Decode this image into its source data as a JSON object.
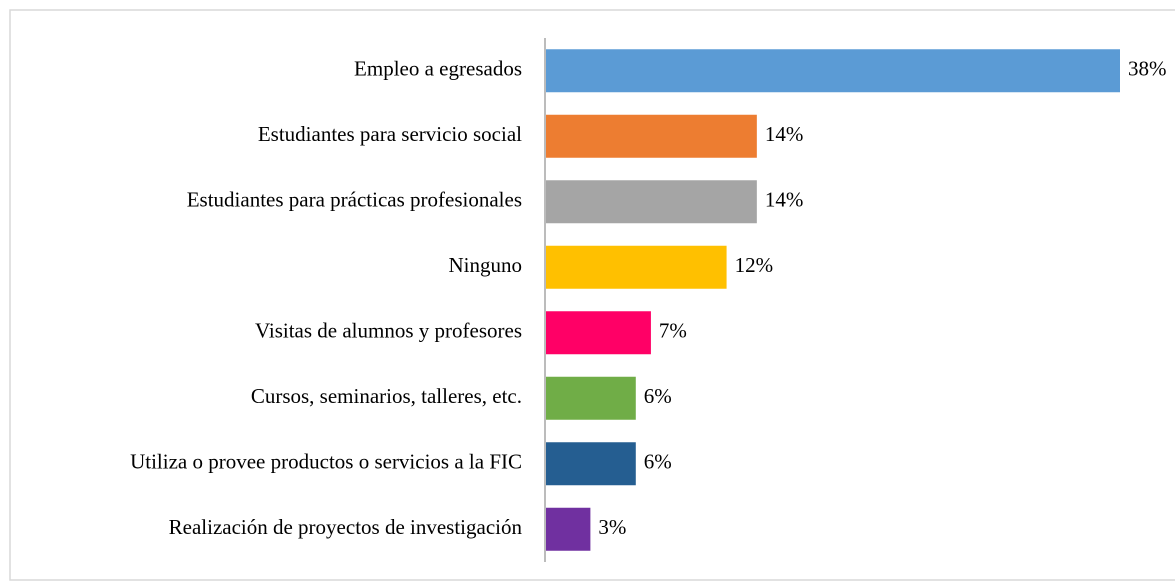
{
  "chart_data": {
    "type": "bar",
    "orientation": "horizontal",
    "categories": [
      "Empleo a egresados",
      "Estudiantes para servicio social",
      "Estudiantes para prácticas profesionales",
      "Ninguno",
      "Visitas de alumnos y profesores",
      "Cursos, seminarios, talleres, etc.",
      "Utiliza o provee productos o servicios a la FIC",
      "Realización de proyectos de investigación"
    ],
    "values": [
      38,
      14,
      14,
      12,
      7,
      6,
      6,
      3
    ],
    "value_labels": [
      "38%",
      "14%",
      "14%",
      "12%",
      "7%",
      "6%",
      "6%",
      "3%"
    ],
    "colors": [
      "#5b9bd5",
      "#ed7d31",
      "#a5a5a5",
      "#ffc000",
      "#ff0066",
      "#70ad47",
      "#255e91",
      "#7030a0"
    ]
  }
}
